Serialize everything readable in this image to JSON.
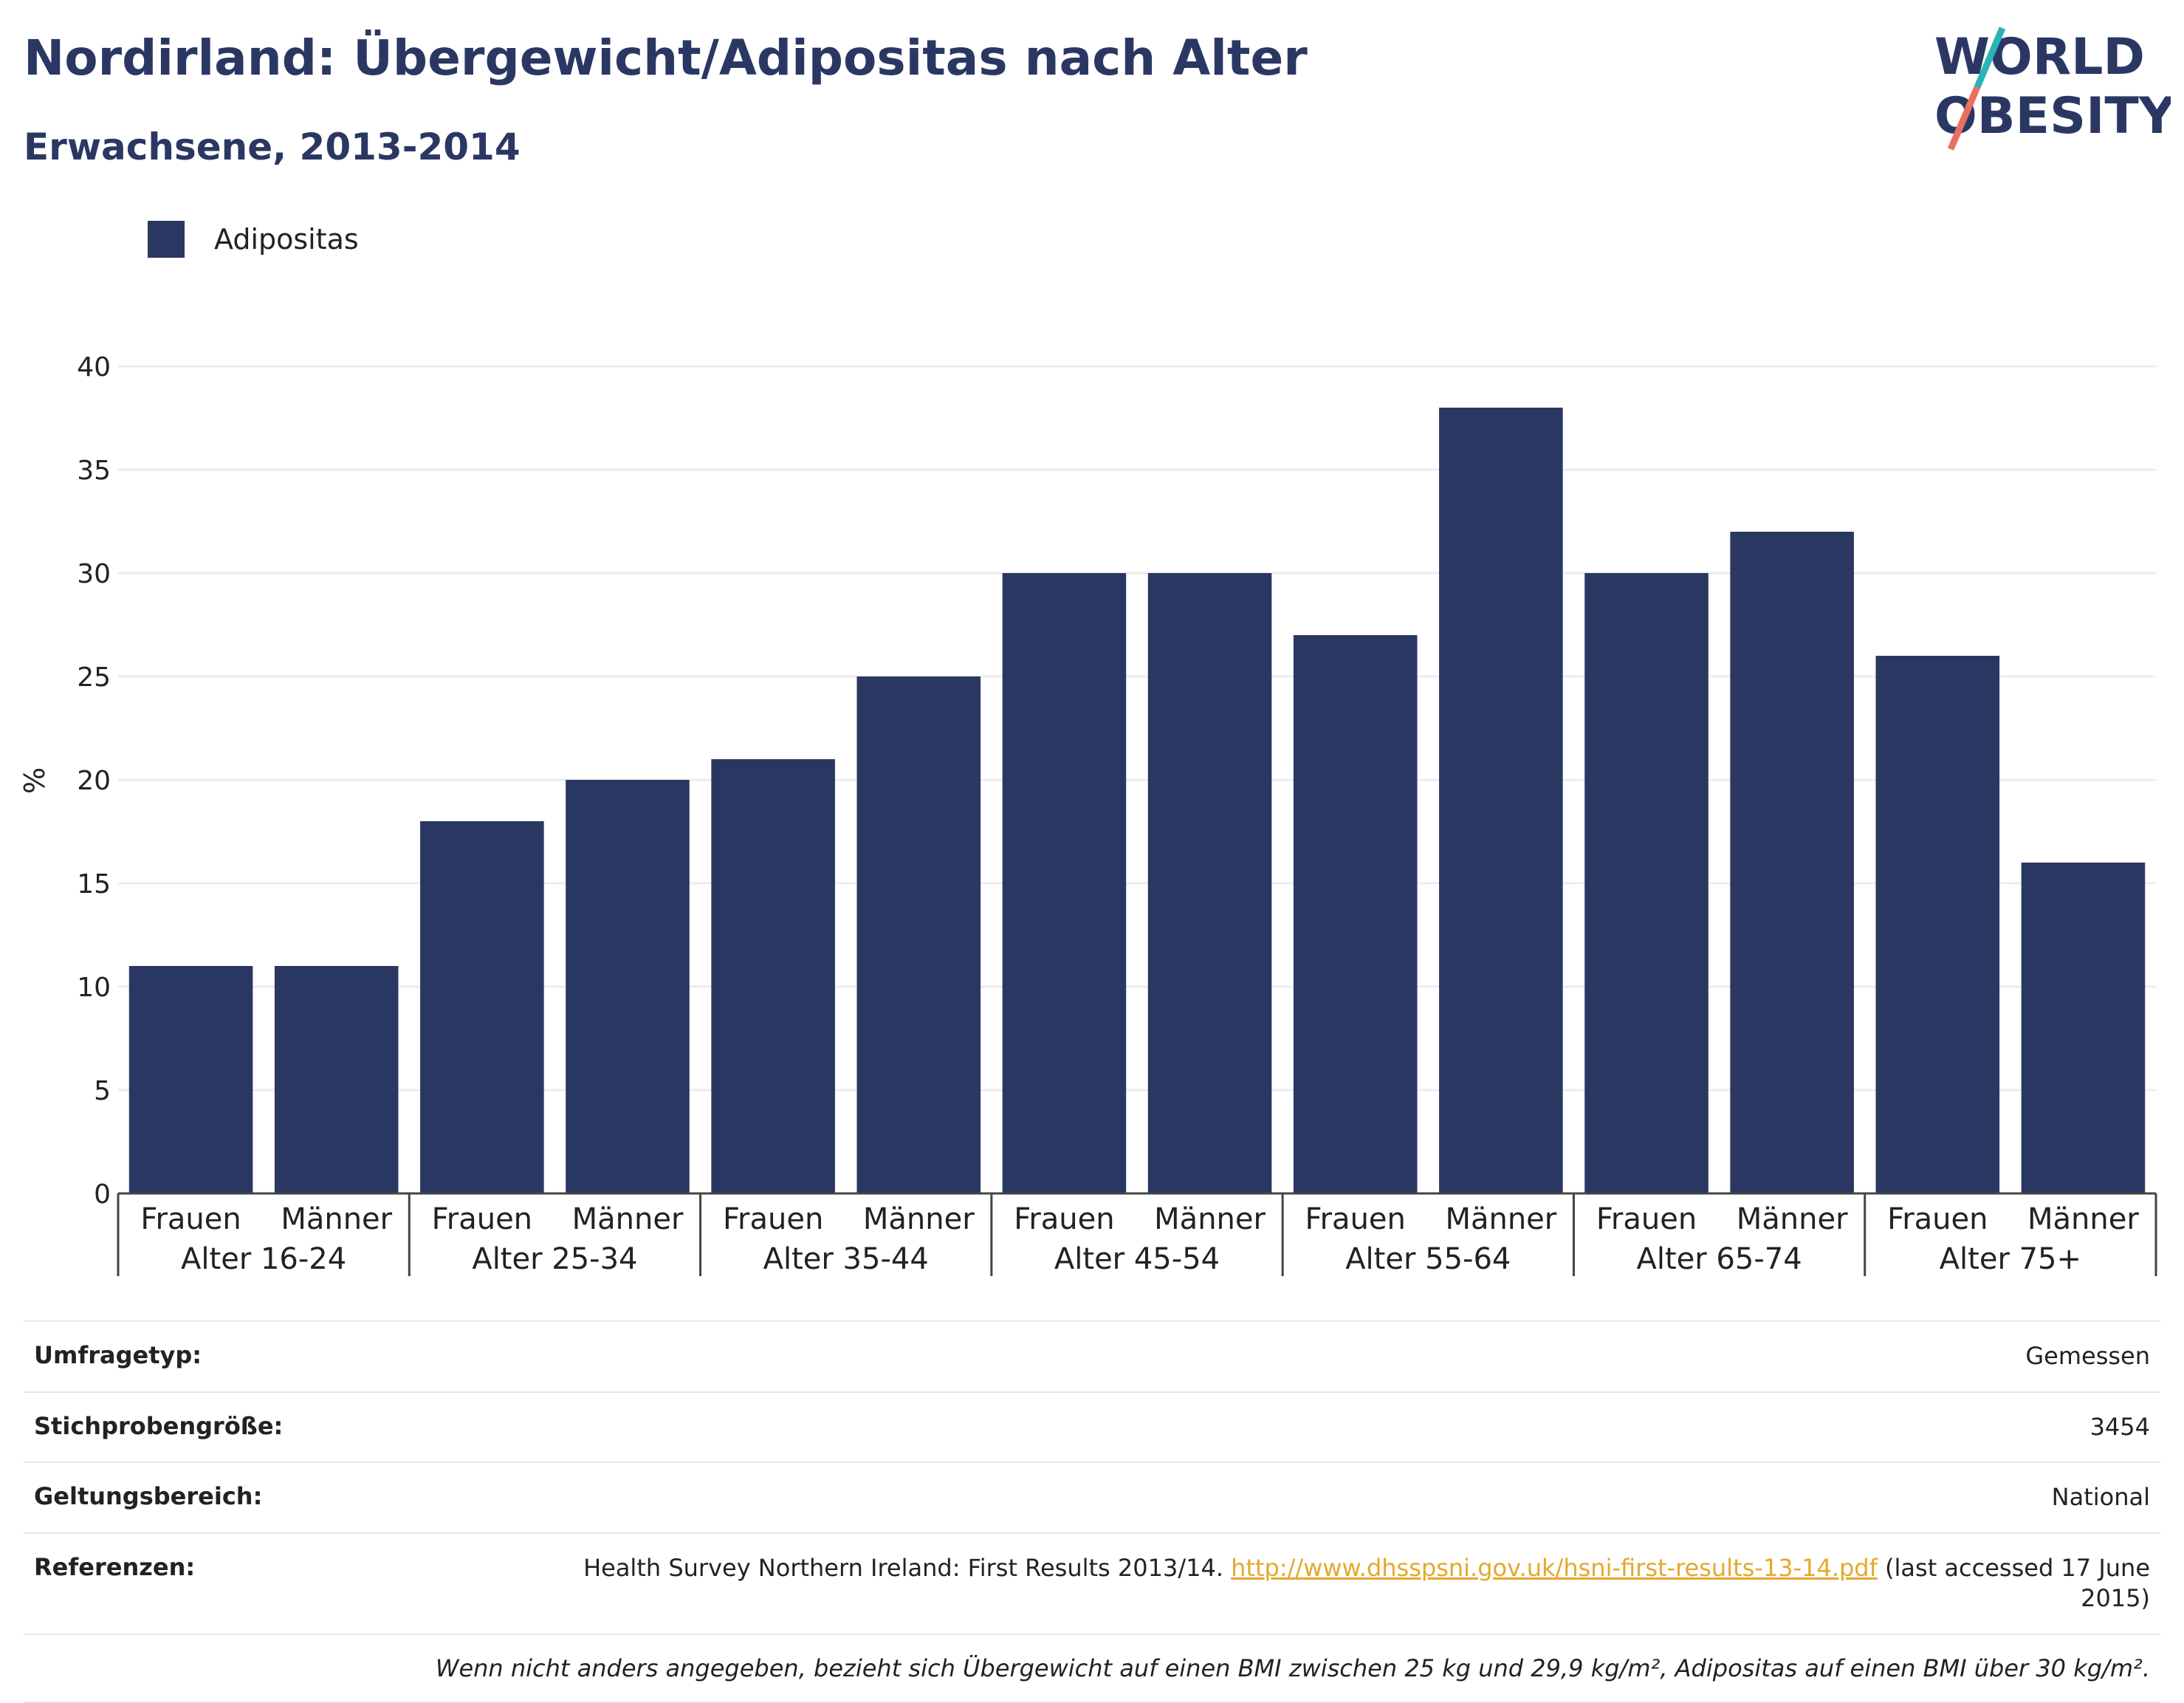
{
  "header": {
    "title": "Nordirland: Übergewicht/Adipositas nach Alter",
    "subtitle": "Erwachsene, 2013-2014"
  },
  "logo": {
    "line1": "WORLD",
    "line2": "OBESITY",
    "colors": {
      "text": "#2b3763",
      "slash_top": "#2bb3b8",
      "slash_bottom": "#e9715f"
    }
  },
  "legend": {
    "label": "Adipositas",
    "color": "#2b3763"
  },
  "chart_data": {
    "type": "bar",
    "x": [
      "Frauen",
      "Männer",
      "Frauen",
      "Männer",
      "Frauen",
      "Männer",
      "Frauen",
      "Männer",
      "Frauen",
      "Männer",
      "Frauen",
      "Männer",
      "Frauen",
      "Männer"
    ],
    "groups": [
      "Alter 16-24",
      "Alter 25-34",
      "Alter 35-44",
      "Alter 45-54",
      "Alter 55-64",
      "Alter 65-74",
      "Alter 75+"
    ],
    "series": [
      {
        "name": "Adipositas",
        "color": "#2b3763",
        "values": [
          11,
          11,
          18,
          20,
          21,
          25,
          30,
          30,
          27,
          38,
          30,
          32,
          26,
          16
        ]
      }
    ],
    "ylabel": "%",
    "ylim": [
      0,
      40
    ],
    "yticks": [
      0,
      5,
      10,
      15,
      20,
      25,
      30,
      35,
      40
    ],
    "grid": true,
    "legend_position": "top-left"
  },
  "info": {
    "rows": [
      {
        "label": "Umfragetyp:",
        "value": "Gemessen"
      },
      {
        "label": "Stichprobengröße:",
        "value": "3454"
      },
      {
        "label": "Geltungsbereich:",
        "value": "National"
      }
    ],
    "references": {
      "label": "Referenzen:",
      "text_before": "Health Survey Northern Ireland: First Results 2013/14.",
      "link": "http://www.dhsspsni.gov.uk/hsni-first-results-13-14.pdf",
      "text_after": "(last accessed 17 June 2015)"
    },
    "footnote": "Wenn nicht anders angegeben, bezieht sich Übergewicht auf einen BMI zwischen 25 kg und 29,9 kg/m², Adipositas auf einen BMI über 30 kg/m²."
  }
}
